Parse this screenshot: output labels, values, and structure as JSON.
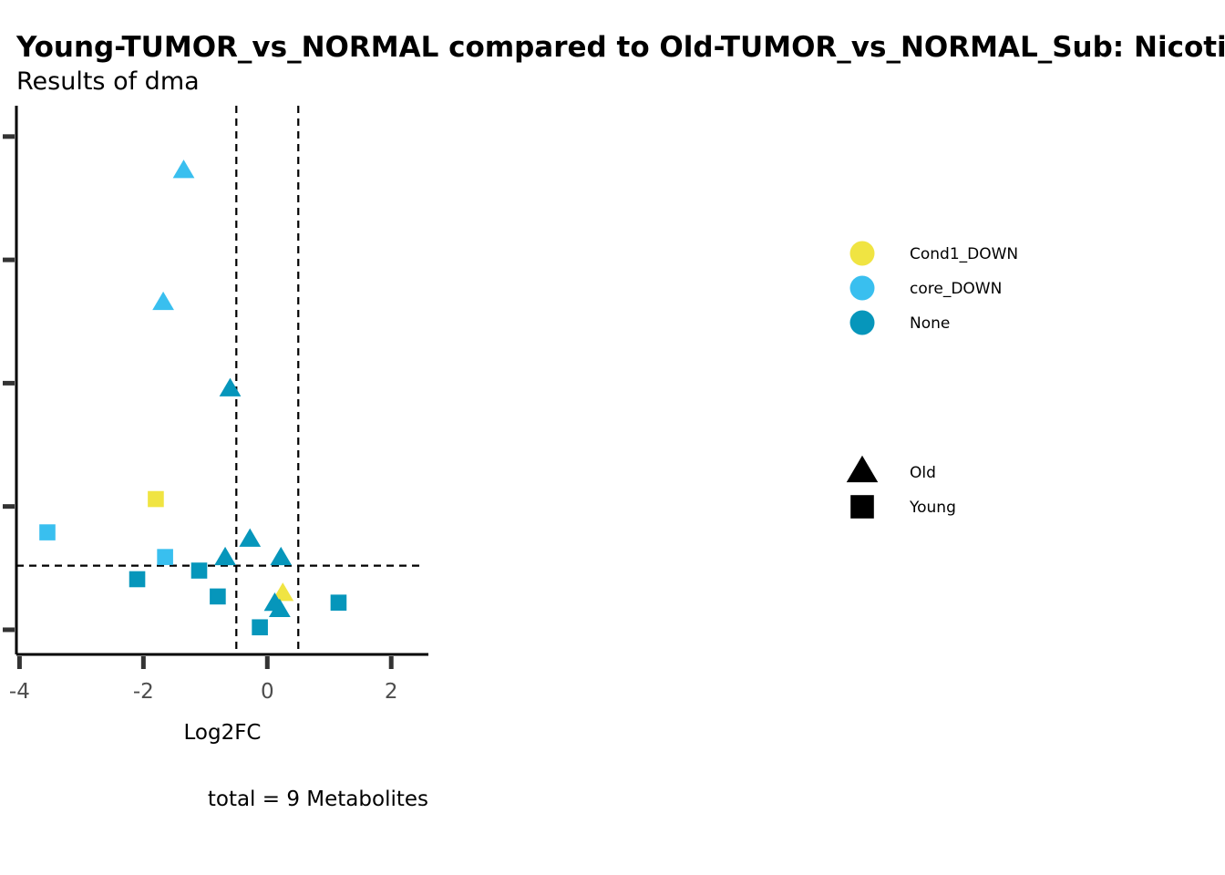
{
  "chart_data": {
    "type": "scatter",
    "title": "Young-TUMOR_vs_NORMAL compared to Old-TUMOR_vs_NORMAL_Sub: Nicotinate and nicotinamide metabolism",
    "subtitle": "Results of dma",
    "xlabel": "Log2FC",
    "ylabel": "",
    "caption": "total = 9 Metabolites",
    "xlim": [
      -4.05,
      2.6
    ],
    "x_ticks": [
      -4,
      -2,
      0,
      2
    ],
    "x_tick_labels": [
      "-4",
      "-2",
      "0",
      "2"
    ],
    "ylim": [
      -0.2,
      4.25
    ],
    "y_ticks": [
      0,
      1,
      2,
      3,
      4
    ],
    "y_tick_labels": [
      "",
      "",
      "",
      "",
      ""
    ],
    "vlines": [
      -0.5,
      0.5
    ],
    "hline": 0.52,
    "grid": false,
    "colors": {
      "Cond1_DOWN": "#f0e442",
      "core_DOWN": "#39bfef",
      "None": "#0696bb"
    },
    "color_legend": [
      {
        "label": "Cond1_DOWN",
        "color": "#f0e442"
      },
      {
        "label": "core_DOWN",
        "color": "#39bfef"
      },
      {
        "label": "None",
        "color": "#0696bb"
      }
    ],
    "shape_legend": [
      {
        "label": "Old",
        "shape": "triangle"
      },
      {
        "label": "Young",
        "shape": "square"
      }
    ],
    "legend_position": "right",
    "points": [
      {
        "x": -1.35,
        "y": 3.72,
        "group": "Old",
        "status": "core_DOWN"
      },
      {
        "x": -1.68,
        "y": 2.65,
        "group": "Old",
        "status": "core_DOWN"
      },
      {
        "x": -0.6,
        "y": 1.95,
        "group": "Old",
        "status": "None"
      },
      {
        "x": -0.28,
        "y": 0.73,
        "group": "Old",
        "status": "None"
      },
      {
        "x": -0.68,
        "y": 0.58,
        "group": "Old",
        "status": "None"
      },
      {
        "x": 0.22,
        "y": 0.58,
        "group": "Old",
        "status": "None"
      },
      {
        "x": 0.25,
        "y": 0.29,
        "group": "Old",
        "status": "Cond1_DOWN"
      },
      {
        "x": 0.12,
        "y": 0.21,
        "group": "Old",
        "status": "None"
      },
      {
        "x": 0.2,
        "y": 0.16,
        "group": "Old",
        "status": "None"
      },
      {
        "x": -1.8,
        "y": 1.06,
        "group": "Young",
        "status": "Cond1_DOWN"
      },
      {
        "x": -3.55,
        "y": 0.79,
        "group": "Young",
        "status": "core_DOWN"
      },
      {
        "x": -1.65,
        "y": 0.59,
        "group": "Young",
        "status": "core_DOWN"
      },
      {
        "x": -1.1,
        "y": 0.48,
        "group": "Young",
        "status": "None"
      },
      {
        "x": -2.1,
        "y": 0.41,
        "group": "Young",
        "status": "None"
      },
      {
        "x": -0.8,
        "y": 0.27,
        "group": "Young",
        "status": "None"
      },
      {
        "x": 1.15,
        "y": 0.22,
        "group": "Young",
        "status": "None"
      },
      {
        "x": -0.12,
        "y": 0.02,
        "group": "Young",
        "status": "None"
      }
    ]
  }
}
